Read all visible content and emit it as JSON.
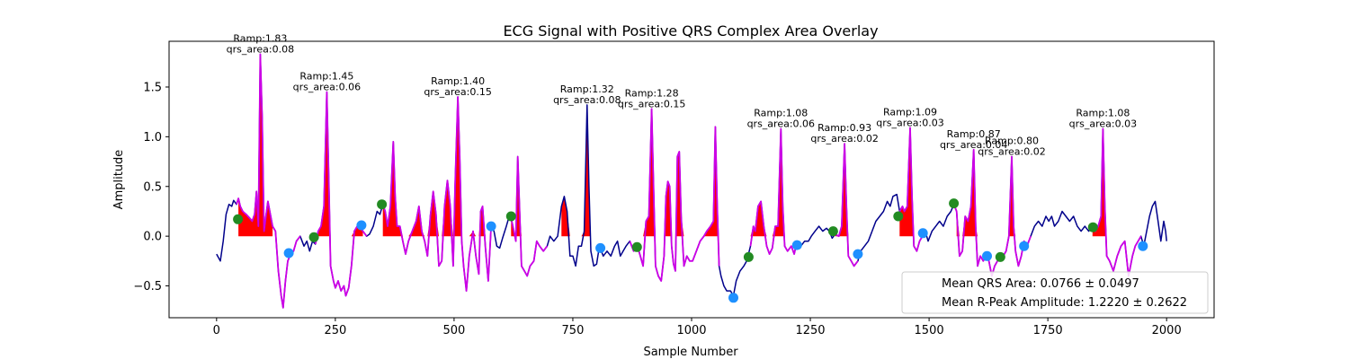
{
  "chart_data": {
    "type": "line",
    "title": "ECG Signal with Positive QRS Complex Area Overlay",
    "xlabel": "Sample Number",
    "ylabel": "Amplitude",
    "xlim": [
      -100,
      2100
    ],
    "ylim": [
      -0.82,
      1.96
    ],
    "xticks": [
      0,
      250,
      500,
      750,
      1000,
      1250,
      1500,
      1750,
      2000
    ],
    "yticks": [
      -0.5,
      0.0,
      0.5,
      1.0,
      1.5
    ],
    "xtick_labels": [
      "0",
      "250",
      "500",
      "750",
      "1000",
      "1250",
      "1500",
      "1750",
      "2000"
    ],
    "ytick_labels": [
      "−0.5",
      "0.0",
      "0.5",
      "1.0",
      "1.5"
    ],
    "grid": false,
    "legend_position": "bottom-right",
    "legend": [
      "Mean QRS Area: 0.0766 ± 0.0497",
      "Mean R-Peak Amplitude: 1.2220 ± 0.2622"
    ],
    "colors": {
      "signal": "#00008B",
      "qrs_segment": "#CC00E6",
      "qrs_area": "#FF0000",
      "onset_marker": "#228B22",
      "offset_marker": "#1E90FF"
    },
    "signal_points": [
      [
        0,
        -0.18
      ],
      [
        8,
        -0.25
      ],
      [
        14,
        -0.05
      ],
      [
        20,
        0.22
      ],
      [
        26,
        0.32
      ],
      [
        32,
        0.3
      ],
      [
        36,
        0.36
      ],
      [
        42,
        0.32
      ],
      [
        46,
        0.38
      ],
      [
        50,
        0.3
      ],
      [
        55,
        0.25
      ],
      [
        62,
        0.22
      ],
      [
        70,
        0.18
      ],
      [
        75,
        0.15
      ],
      [
        80,
        0.22
      ],
      [
        84,
        0.45
      ],
      [
        88,
        0.1
      ],
      [
        92,
        1.83
      ],
      [
        96,
        1.2
      ],
      [
        100,
        0.05
      ],
      [
        104,
        0.2
      ],
      [
        108,
        0.35
      ],
      [
        112,
        0.25
      ],
      [
        118,
        0.1
      ],
      [
        124,
        0.05
      ],
      [
        130,
        -0.35
      ],
      [
        136,
        -0.6
      ],
      [
        140,
        -0.72
      ],
      [
        145,
        -0.45
      ],
      [
        150,
        -0.25
      ],
      [
        156,
        -0.18
      ],
      [
        162,
        -0.15
      ],
      [
        168,
        -0.05
      ],
      [
        176,
        0.0
      ],
      [
        184,
        -0.1
      ],
      [
        190,
        -0.05
      ],
      [
        196,
        -0.15
      ],
      [
        202,
        -0.05
      ],
      [
        208,
        -0.08
      ],
      [
        214,
        0.05
      ],
      [
        220,
        0.1
      ],
      [
        226,
        0.3
      ],
      [
        232,
        1.45
      ],
      [
        236,
        0.6
      ],
      [
        240,
        -0.3
      ],
      [
        246,
        -0.45
      ],
      [
        250,
        -0.52
      ],
      [
        256,
        -0.45
      ],
      [
        262,
        -0.55
      ],
      [
        268,
        -0.5
      ],
      [
        272,
        -0.6
      ],
      [
        278,
        -0.52
      ],
      [
        284,
        -0.3
      ],
      [
        290,
        0.05
      ],
      [
        296,
        0.1
      ],
      [
        302,
        0.1
      ],
      [
        308,
        0.05
      ],
      [
        316,
        0.0
      ],
      [
        322,
        0.02
      ],
      [
        330,
        0.1
      ],
      [
        338,
        0.25
      ],
      [
        344,
        0.22
      ],
      [
        350,
        0.32
      ],
      [
        355,
        0.25
      ],
      [
        360,
        0.1
      ],
      [
        366,
        0.3
      ],
      [
        372,
        0.95
      ],
      [
        376,
        0.4
      ],
      [
        380,
        0.1
      ],
      [
        386,
        0.1
      ],
      [
        392,
        -0.05
      ],
      [
        398,
        -0.18
      ],
      [
        404,
        -0.05
      ],
      [
        412,
        0.05
      ],
      [
        420,
        0.15
      ],
      [
        426,
        0.3
      ],
      [
        432,
        0.05
      ],
      [
        438,
        -0.05
      ],
      [
        444,
        -0.2
      ],
      [
        450,
        0.2
      ],
      [
        456,
        0.45
      ],
      [
        462,
        0.22
      ],
      [
        468,
        -0.3
      ],
      [
        474,
        -0.25
      ],
      [
        480,
        0.3
      ],
      [
        486,
        0.56
      ],
      [
        492,
        0.3
      ],
      [
        498,
        -0.3
      ],
      [
        502,
        0.5
      ],
      [
        508,
        1.4
      ],
      [
        512,
        0.8
      ],
      [
        516,
        -0.05
      ],
      [
        520,
        -0.3
      ],
      [
        526,
        -0.55
      ],
      [
        532,
        -0.2
      ],
      [
        540,
        0.05
      ],
      [
        546,
        -0.2
      ],
      [
        552,
        -0.38
      ],
      [
        556,
        0.25
      ],
      [
        560,
        0.3
      ],
      [
        566,
        -0.12
      ],
      [
        572,
        -0.45
      ],
      [
        578,
        0.1
      ],
      [
        584,
        0.05
      ],
      [
        590,
        -0.1
      ],
      [
        596,
        -0.12
      ],
      [
        602,
        -0.02
      ],
      [
        610,
        0.1
      ],
      [
        616,
        0.2
      ],
      [
        620,
        0.18
      ],
      [
        626,
        0.05
      ],
      [
        630,
        -0.05
      ],
      [
        634,
        0.8
      ],
      [
        638,
        0.25
      ],
      [
        642,
        -0.3
      ],
      [
        648,
        -0.35
      ],
      [
        654,
        -0.4
      ],
      [
        660,
        -0.3
      ],
      [
        668,
        -0.25
      ],
      [
        674,
        -0.05
      ],
      [
        680,
        -0.1
      ],
      [
        688,
        -0.15
      ],
      [
        696,
        -0.1
      ],
      [
        702,
        0.0
      ],
      [
        710,
        -0.05
      ],
      [
        718,
        0.0
      ],
      [
        726,
        0.3
      ],
      [
        732,
        0.4
      ],
      [
        738,
        0.25
      ],
      [
        744,
        -0.2
      ],
      [
        750,
        -0.2
      ],
      [
        756,
        -0.3
      ],
      [
        762,
        -0.1
      ],
      [
        768,
        -0.1
      ],
      [
        774,
        0.05
      ],
      [
        780,
        1.32
      ],
      [
        784,
        0.5
      ],
      [
        788,
        -0.15
      ],
      [
        794,
        -0.3
      ],
      [
        800,
        -0.28
      ],
      [
        806,
        -0.1
      ],
      [
        814,
        -0.2
      ],
      [
        822,
        -0.15
      ],
      [
        830,
        -0.2
      ],
      [
        838,
        -0.1
      ],
      [
        844,
        -0.05
      ],
      [
        850,
        -0.2
      ],
      [
        856,
        -0.15
      ],
      [
        862,
        -0.1
      ],
      [
        870,
        -0.05
      ],
      [
        878,
        -0.15
      ],
      [
        886,
        -0.1
      ],
      [
        892,
        -0.2
      ],
      [
        898,
        -0.3
      ],
      [
        904,
        0.15
      ],
      [
        910,
        0.2
      ],
      [
        916,
        1.28
      ],
      [
        920,
        0.5
      ],
      [
        924,
        -0.3
      ],
      [
        930,
        -0.4
      ],
      [
        936,
        -0.45
      ],
      [
        942,
        -0.2
      ],
      [
        946,
        0.4
      ],
      [
        950,
        0.55
      ],
      [
        954,
        0.5
      ],
      [
        958,
        -0.1
      ],
      [
        962,
        -0.28
      ],
      [
        966,
        -0.35
      ],
      [
        970,
        0.8
      ],
      [
        974,
        0.85
      ],
      [
        978,
        0.2
      ],
      [
        984,
        -0.3
      ],
      [
        990,
        -0.2
      ],
      [
        996,
        -0.25
      ],
      [
        1002,
        -0.25
      ],
      [
        1010,
        -0.15
      ],
      [
        1018,
        -0.05
      ],
      [
        1026,
        0.0
      ],
      [
        1032,
        0.05
      ],
      [
        1040,
        0.1
      ],
      [
        1046,
        0.15
      ],
      [
        1050,
        1.1
      ],
      [
        1054,
        0.3
      ],
      [
        1058,
        -0.3
      ],
      [
        1062,
        -0.4
      ],
      [
        1068,
        -0.5
      ],
      [
        1074,
        -0.55
      ],
      [
        1082,
        -0.55
      ],
      [
        1088,
        -0.6
      ],
      [
        1094,
        -0.45
      ],
      [
        1102,
        -0.35
      ],
      [
        1110,
        -0.3
      ],
      [
        1116,
        -0.25
      ],
      [
        1124,
        -0.1
      ],
      [
        1130,
        0.1
      ],
      [
        1134,
        0.05
      ],
      [
        1140,
        0.3
      ],
      [
        1146,
        0.35
      ],
      [
        1152,
        0.1
      ],
      [
        1158,
        -0.1
      ],
      [
        1164,
        -0.18
      ],
      [
        1170,
        -0.12
      ],
      [
        1176,
        0.1
      ],
      [
        1182,
        0.1
      ],
      [
        1188,
        1.08
      ],
      [
        1192,
        0.3
      ],
      [
        1196,
        -0.1
      ],
      [
        1202,
        -0.15
      ],
      [
        1210,
        -0.1
      ],
      [
        1216,
        -0.18
      ],
      [
        1222,
        -0.05
      ],
      [
        1230,
        -0.1
      ],
      [
        1238,
        -0.05
      ],
      [
        1246,
        -0.05
      ],
      [
        1252,
        0.0
      ],
      [
        1260,
        0.05
      ],
      [
        1268,
        0.1
      ],
      [
        1276,
        0.05
      ],
      [
        1284,
        0.08
      ],
      [
        1290,
        0.05
      ],
      [
        1296,
        -0.02
      ],
      [
        1302,
        0.02
      ],
      [
        1310,
        0.0
      ],
      [
        1316,
        0.1
      ],
      [
        1322,
        0.93
      ],
      [
        1326,
        0.3
      ],
      [
        1330,
        -0.2
      ],
      [
        1336,
        -0.25
      ],
      [
        1342,
        -0.3
      ],
      [
        1350,
        -0.25
      ],
      [
        1356,
        -0.15
      ],
      [
        1364,
        -0.1
      ],
      [
        1372,
        -0.05
      ],
      [
        1380,
        0.05
      ],
      [
        1388,
        0.15
      ],
      [
        1396,
        0.2
      ],
      [
        1404,
        0.25
      ],
      [
        1412,
        0.35
      ],
      [
        1418,
        0.3
      ],
      [
        1424,
        0.4
      ],
      [
        1432,
        0.42
      ],
      [
        1438,
        0.25
      ],
      [
        1444,
        0.3
      ],
      [
        1448,
        0.25
      ],
      [
        1454,
        0.3
      ],
      [
        1460,
        1.09
      ],
      [
        1464,
        0.4
      ],
      [
        1468,
        -0.1
      ],
      [
        1474,
        -0.15
      ],
      [
        1480,
        -0.05
      ],
      [
        1486,
        0.0
      ],
      [
        1492,
        0.05
      ],
      [
        1498,
        -0.05
      ],
      [
        1506,
        0.05
      ],
      [
        1514,
        0.1
      ],
      [
        1522,
        0.15
      ],
      [
        1530,
        0.1
      ],
      [
        1538,
        0.2
      ],
      [
        1546,
        0.25
      ],
      [
        1552,
        0.32
      ],
      [
        1558,
        0.25
      ],
      [
        1564,
        -0.2
      ],
      [
        1570,
        -0.15
      ],
      [
        1576,
        0.2
      ],
      [
        1582,
        0.15
      ],
      [
        1588,
        0.3
      ],
      [
        1594,
        0.87
      ],
      [
        1598,
        0.1
      ],
      [
        1602,
        -0.3
      ],
      [
        1608,
        -0.2
      ],
      [
        1614,
        -0.25
      ],
      [
        1620,
        -0.2
      ],
      [
        1626,
        -0.25
      ],
      [
        1632,
        -0.4
      ],
      [
        1638,
        -0.3
      ],
      [
        1644,
        -0.25
      ],
      [
        1650,
        -0.22
      ],
      [
        1656,
        -0.2
      ],
      [
        1662,
        -0.15
      ],
      [
        1668,
        0.0
      ],
      [
        1674,
        0.8
      ],
      [
        1678,
        0.1
      ],
      [
        1682,
        -0.15
      ],
      [
        1688,
        -0.3
      ],
      [
        1694,
        -0.2
      ],
      [
        1700,
        -0.05
      ],
      [
        1706,
        -0.1
      ],
      [
        1714,
        0.0
      ],
      [
        1722,
        0.1
      ],
      [
        1730,
        0.15
      ],
      [
        1738,
        0.1
      ],
      [
        1746,
        0.2
      ],
      [
        1752,
        0.15
      ],
      [
        1758,
        0.2
      ],
      [
        1764,
        0.1
      ],
      [
        1772,
        0.15
      ],
      [
        1780,
        0.25
      ],
      [
        1788,
        0.2
      ],
      [
        1796,
        0.15
      ],
      [
        1804,
        0.2
      ],
      [
        1812,
        0.1
      ],
      [
        1820,
        0.05
      ],
      [
        1828,
        0.1
      ],
      [
        1836,
        0.05
      ],
      [
        1844,
        0.1
      ],
      [
        1850,
        0.05
      ],
      [
        1856,
        0.1
      ],
      [
        1862,
        0.2
      ],
      [
        1866,
        1.08
      ],
      [
        1870,
        0.3
      ],
      [
        1874,
        -0.2
      ],
      [
        1880,
        -0.25
      ],
      [
        1888,
        -0.35
      ],
      [
        1896,
        -0.2
      ],
      [
        1904,
        -0.1
      ],
      [
        1912,
        -0.05
      ],
      [
        1920,
        -0.4
      ],
      [
        1928,
        -0.2
      ],
      [
        1934,
        -0.1
      ],
      [
        1940,
        -0.05
      ],
      [
        1946,
        0.0
      ],
      [
        1952,
        -0.1
      ],
      [
        1958,
        0.05
      ],
      [
        1964,
        0.2
      ],
      [
        1970,
        0.3
      ],
      [
        1976,
        0.35
      ],
      [
        1982,
        0.15
      ],
      [
        1988,
        -0.05
      ],
      [
        1994,
        0.15
      ],
      [
        1998,
        0.05
      ],
      [
        2000,
        -0.05
      ]
    ],
    "qrs_segments": [
      [
        40,
        180
      ],
      [
        205,
        320
      ],
      [
        345,
        580
      ],
      [
        615,
        700
      ],
      [
        870,
        1060
      ],
      [
        1120,
        1230
      ],
      [
        1300,
        1355
      ],
      [
        1435,
        1490
      ],
      [
        1550,
        1720
      ],
      [
        1840,
        1950
      ]
    ],
    "qrs_area_segments": [
      [
        45,
        120
      ],
      [
        210,
        310
      ],
      [
        350,
        570
      ],
      [
        620,
        670
      ],
      [
        720,
        800
      ],
      [
        880,
        1055
      ],
      [
        1120,
        1200
      ],
      [
        1300,
        1335
      ],
      [
        1435,
        1475
      ],
      [
        1555,
        1610
      ],
      [
        1655,
        1685
      ],
      [
        1840,
        1880
      ]
    ],
    "onset_markers": [
      [
        45,
        0.17
      ],
      [
        205,
        -0.01
      ],
      [
        348,
        0.32
      ],
      [
        620,
        0.2
      ],
      [
        885,
        -0.11
      ],
      [
        1120,
        -0.21
      ],
      [
        1298,
        0.05
      ],
      [
        1435,
        0.2
      ],
      [
        1552,
        0.33
      ],
      [
        1650,
        -0.21
      ],
      [
        1845,
        0.09
      ]
    ],
    "offset_markers": [
      [
        152,
        -0.17
      ],
      [
        305,
        0.11
      ],
      [
        578,
        0.1
      ],
      [
        808,
        -0.12
      ],
      [
        1088,
        -0.62
      ],
      [
        1222,
        -0.09
      ],
      [
        1350,
        -0.18
      ],
      [
        1487,
        0.03
      ],
      [
        1622,
        -0.2
      ],
      [
        1700,
        -0.1
      ],
      [
        1950,
        -0.1
      ]
    ],
    "annotations": [
      {
        "x": 92,
        "y": 1.83,
        "ramp": "Ramp:1.83",
        "area": "qrs_area:0.08"
      },
      {
        "x": 232,
        "y": 1.45,
        "ramp": "Ramp:1.45",
        "area": "qrs_area:0.06"
      },
      {
        "x": 508,
        "y": 1.4,
        "ramp": "Ramp:1.40",
        "area": "qrs_area:0.15"
      },
      {
        "x": 780,
        "y": 1.32,
        "ramp": "Ramp:1.32",
        "area": "qrs_area:0.08"
      },
      {
        "x": 916,
        "y": 1.28,
        "ramp": "Ramp:1.28",
        "area": "qrs_area:0.15"
      },
      {
        "x": 1188,
        "y": 1.08,
        "ramp": "Ramp:1.08",
        "area": "qrs_area:0.06"
      },
      {
        "x": 1322,
        "y": 0.93,
        "ramp": "Ramp:0.93",
        "area": "qrs_area:0.02"
      },
      {
        "x": 1460,
        "y": 1.09,
        "ramp": "Ramp:1.09",
        "area": "qrs_area:0.03"
      },
      {
        "x": 1594,
        "y": 0.87,
        "ramp": "Ramp:0.87",
        "area": "qrs_area:0.04"
      },
      {
        "x": 1674,
        "y": 0.8,
        "ramp": "Ramp:0.80",
        "area": "qrs_area:0.02"
      },
      {
        "x": 1866,
        "y": 1.08,
        "ramp": "Ramp:1.08",
        "area": "qrs_area:0.03"
      }
    ]
  }
}
